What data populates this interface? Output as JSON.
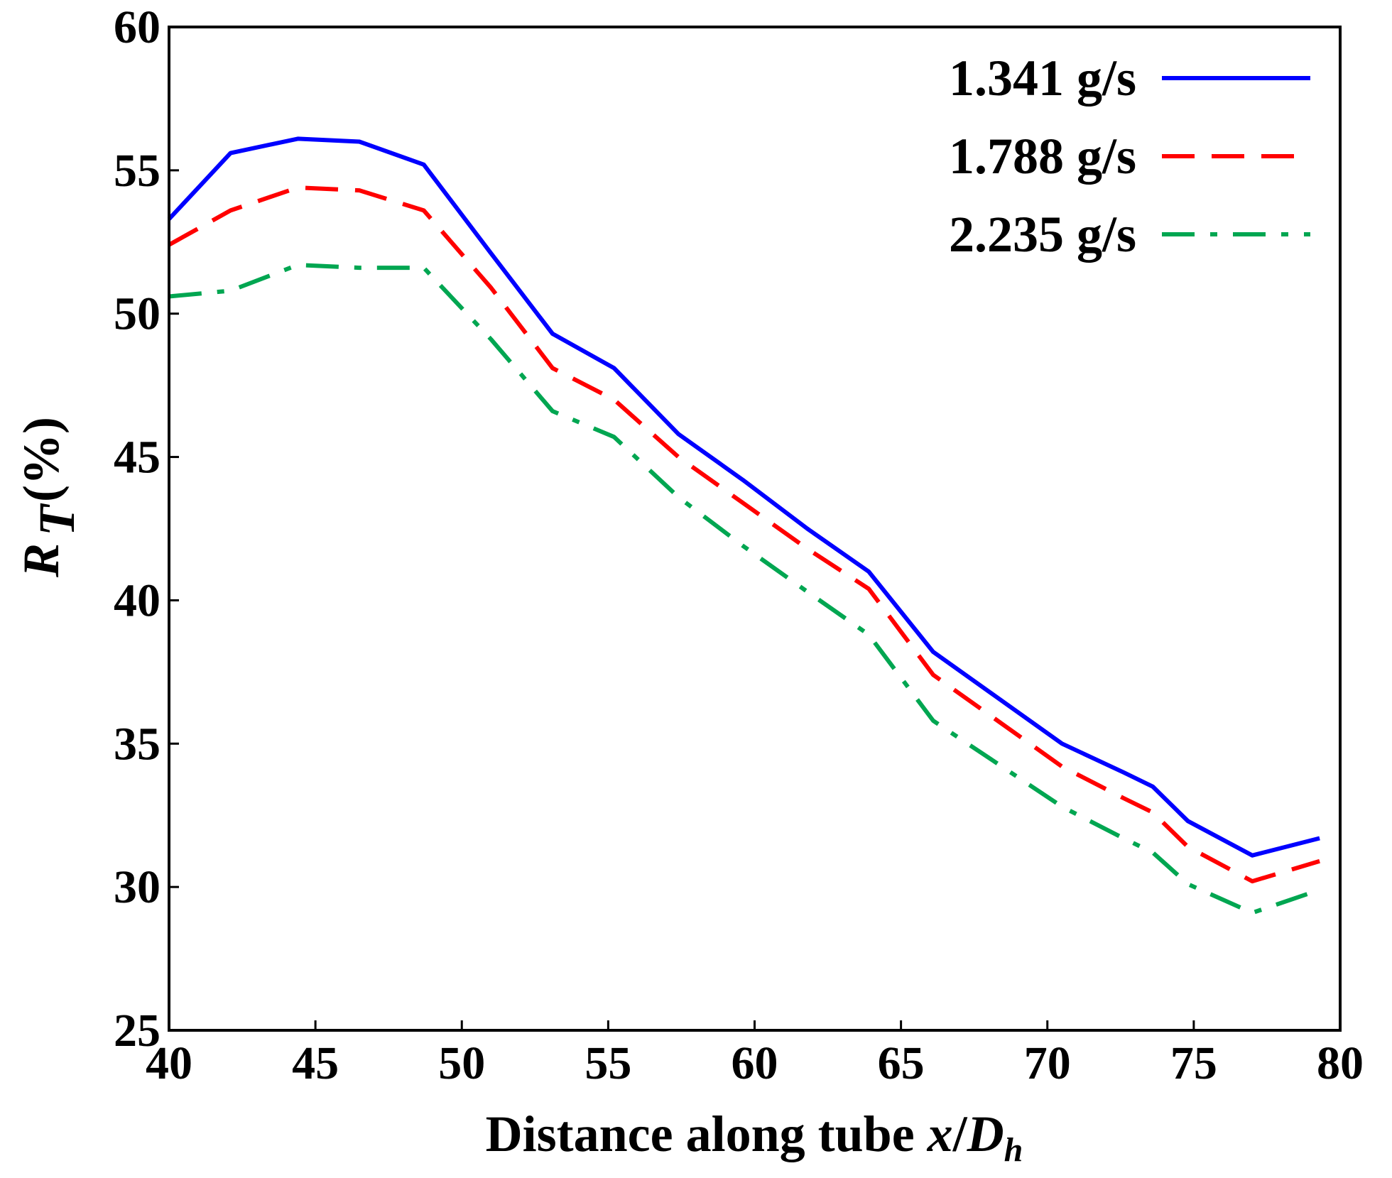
{
  "chart_data": {
    "type": "line",
    "title": "",
    "xlabel": {
      "text": "Distance along tube ",
      "var": "x",
      "sep": "/",
      "var2": "D",
      "sub": "h"
    },
    "ylabel": {
      "var": "R",
      "sub": "T",
      "unit": "(%)"
    },
    "xlim": [
      40,
      80
    ],
    "ylim": [
      25,
      60
    ],
    "xticks": [
      40,
      45,
      50,
      55,
      60,
      65,
      70,
      75,
      80
    ],
    "yticks": [
      25,
      30,
      35,
      40,
      45,
      50,
      55,
      60
    ],
    "xtick_labels": [
      "40",
      "45",
      "50",
      "55",
      "60",
      "65",
      "70",
      "75",
      "80"
    ],
    "ytick_labels": [
      "25",
      "30",
      "35",
      "40",
      "45",
      "50",
      "55",
      "60"
    ],
    "grid": false,
    "legend_position": "top-right",
    "series": [
      {
        "name": "1.341 g/s",
        "color": "#0000ff",
        "style": "solid",
        "x": [
          40,
          42.1,
          44.4,
          46.5,
          48.7,
          51.0,
          53.1,
          55.2,
          57.4,
          59.6,
          61.8,
          63.9,
          66.1,
          68.3,
          70.5,
          72.6,
          73.6,
          74.8,
          77.0,
          79.3
        ],
        "y": [
          53.3,
          55.6,
          56.1,
          56.0,
          55.2,
          52.1,
          49.3,
          48.1,
          45.8,
          44.2,
          42.5,
          41.0,
          38.2,
          36.6,
          35.0,
          34.0,
          33.5,
          32.3,
          31.1,
          31.7
        ]
      },
      {
        "name": "1.788 g/s",
        "color": "#ff0000",
        "style": "dashed",
        "x": [
          40,
          42.1,
          44.4,
          46.5,
          48.7,
          51.0,
          53.1,
          55.2,
          57.4,
          59.6,
          61.8,
          63.9,
          66.1,
          68.3,
          70.5,
          72.6,
          73.6,
          74.8,
          77.0,
          79.3
        ],
        "y": [
          52.4,
          53.6,
          54.4,
          54.3,
          53.6,
          50.9,
          48.1,
          47.0,
          45.0,
          43.4,
          41.8,
          40.4,
          37.4,
          35.8,
          34.2,
          33.1,
          32.6,
          31.4,
          30.2,
          30.9
        ]
      },
      {
        "name": "2.235 g/s",
        "color": "#00a651",
        "style": "dashdot",
        "x": [
          40,
          42.1,
          44.4,
          46.5,
          48.7,
          51.0,
          53.1,
          55.2,
          57.4,
          59.6,
          61.8,
          63.9,
          66.1,
          68.3,
          70.5,
          72.6,
          73.6,
          74.8,
          77.0,
          79.3
        ],
        "y": [
          50.6,
          50.8,
          51.7,
          51.6,
          51.6,
          49.1,
          46.6,
          45.7,
          43.6,
          41.9,
          40.3,
          38.8,
          35.8,
          34.3,
          32.8,
          31.7,
          31.2,
          30.1,
          29.1,
          29.9
        ]
      }
    ]
  }
}
